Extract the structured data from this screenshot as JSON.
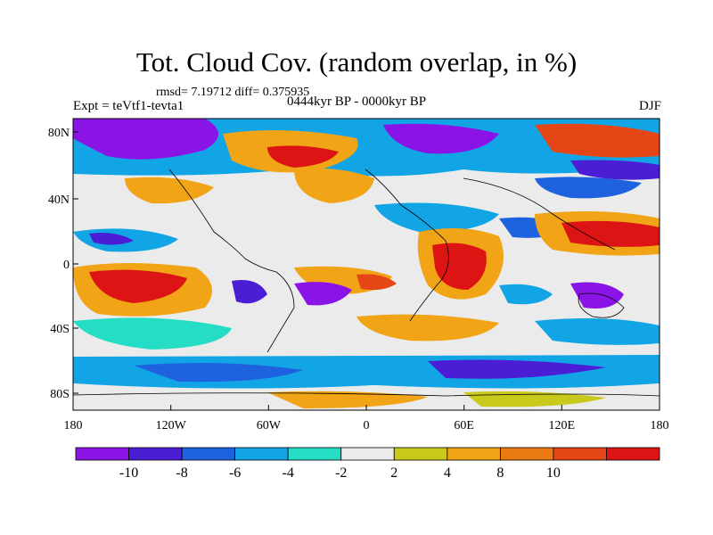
{
  "title": "Tot. Cloud Cov. (random overlap, in %)",
  "stats_line": "rmsd= 7.19712 diff= 0.375935",
  "period": "0444kyr BP - 0000kyr BP",
  "experiment": "Expt = teVtf1-tevta1",
  "season": "DJF",
  "lat_ticks": [
    "80N",
    "40N",
    "0",
    "40S",
    "80S"
  ],
  "lon_ticks": [
    "180",
    "120W",
    "60W",
    "0",
    "60E",
    "120E",
    "180"
  ],
  "colorbar": {
    "labels": [
      "-10",
      "-8",
      "-6",
      "-4",
      "-2",
      "2",
      "4",
      "8",
      "10"
    ],
    "colors": [
      "#8a14e6",
      "#4b1ed6",
      "#1f62e0",
      "#12a5e6",
      "#25dcc4",
      "#ebebeb",
      "#c9c91c",
      "#f0a416",
      "#ec7a12",
      "#e64616",
      "#dc1414"
    ]
  }
}
